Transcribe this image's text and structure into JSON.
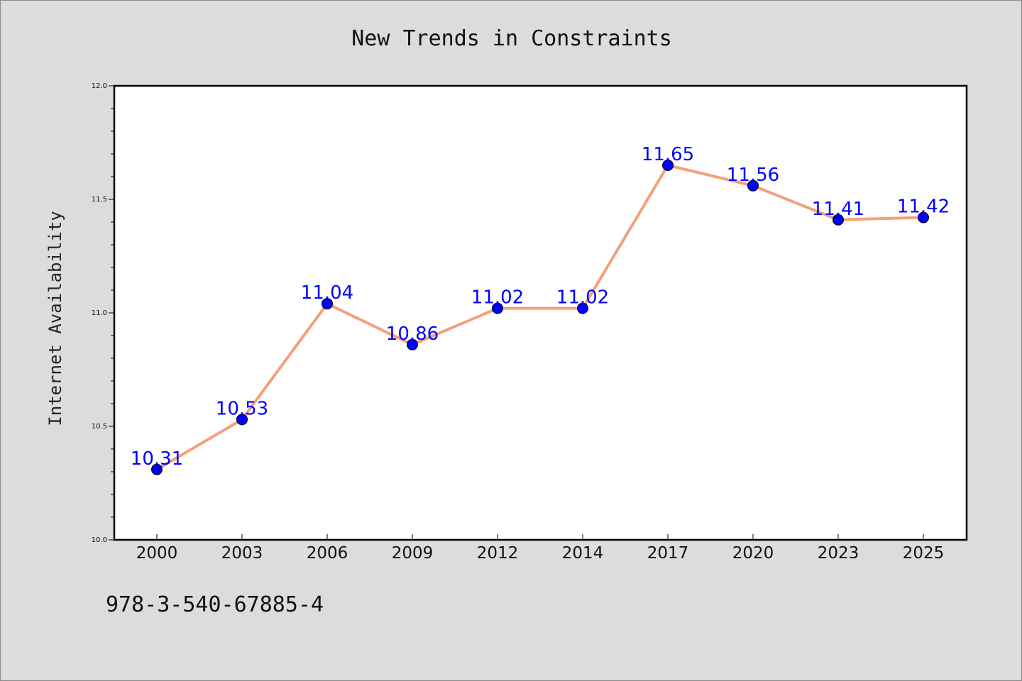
{
  "chart_data": {
    "type": "line",
    "title": "New Trends in Constraints",
    "xlabel": "",
    "ylabel": "Internet Availability",
    "categories": [
      "2000",
      "2003",
      "2006",
      "2009",
      "2012",
      "2014",
      "2017",
      "2020",
      "2023",
      "2025"
    ],
    "values": [
      10.31,
      10.53,
      11.04,
      10.86,
      11.02,
      11.02,
      11.65,
      11.56,
      11.41,
      11.42
    ],
    "data_labels": [
      "10.31",
      "10.53",
      "11.04",
      "10.86",
      "11.02",
      "11.02",
      "11.65",
      "11.56",
      "11.41",
      "11.42"
    ],
    "ylim": [
      10.0,
      12.0
    ],
    "yticks": [
      "10.0",
      "10.5",
      "11.0",
      "11.5",
      "12.0"
    ],
    "ytick_values": [
      10.0,
      10.5,
      11.0,
      11.5,
      12.0
    ],
    "grid": false,
    "line_color": "#f4a07c",
    "marker_color": "#0000ff",
    "label_color": "#0000ff",
    "background_color": "#dcdcdc",
    "plot_background_color": "#ffffff"
  },
  "footer": {
    "isbn": "978-3-540-67885-4"
  }
}
